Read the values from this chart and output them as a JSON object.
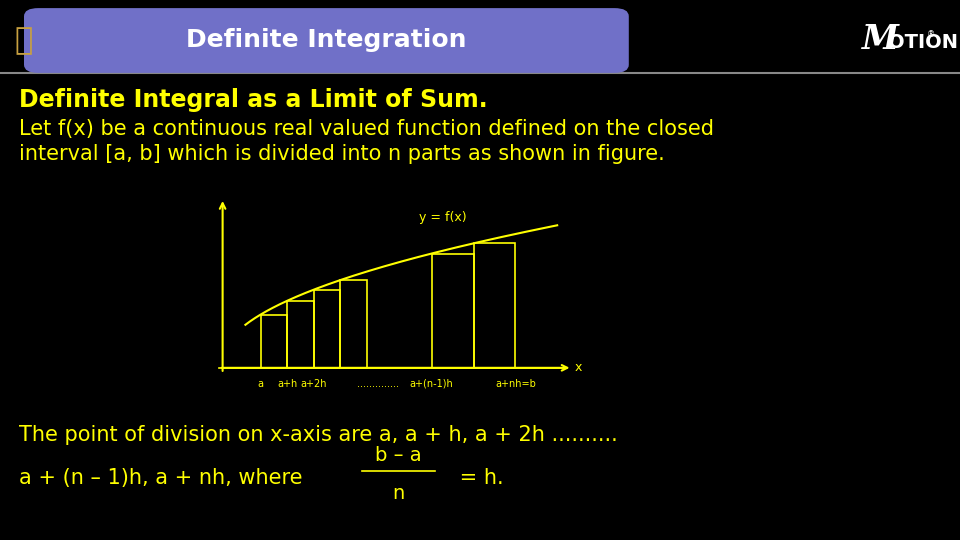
{
  "bg_color": "#000000",
  "header_bg": "#7070c8",
  "header_text": "Definite Integration",
  "header_text_color": "#ffffff",
  "title_text": "Definite Integral as a Limit of Sum.",
  "title_color": "#ffff00",
  "body_color": "#ffff00",
  "line1": "Let f(x) be a continuous real valued function defined on the closed",
  "line2": "interval [a, b] which is divided into n parts as shown in figure.",
  "bottom_line1": "The point of division on x-axis are a, a + h, a + 2h ..........",
  "bottom_line2a": "a + (n – 1)h, a + nh, where ",
  "bottom_line2b": " = h.",
  "fraction_num": "b – a",
  "fraction_den": "n",
  "motion_color": "#ffffff",
  "graph_axis_color": "#ffff00",
  "graph_curve_color": "#ffff00",
  "graph_rect_color": "#ffff00",
  "graph_label_color": "#ffff00",
  "font_size_header": 18,
  "font_size_title": 17,
  "font_size_body": 15,
  "font_size_bottom": 15,
  "font_size_graph": 9,
  "header_line_color": "#888888"
}
